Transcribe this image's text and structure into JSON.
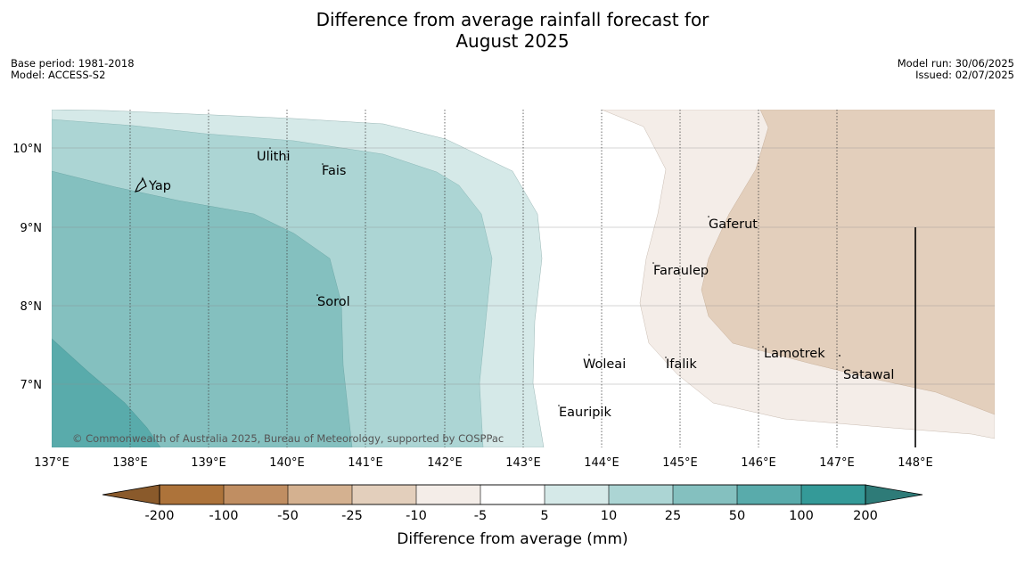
{
  "header": {
    "title_line1": "Difference from average rainfall forecast for",
    "title_line2": "August 2025",
    "base_period": "Base period: 1981-2018",
    "model": "Model: ACCESS-S2",
    "model_run": "Model run: 30/06/2025",
    "issued": "Issued: 02/07/2025"
  },
  "map": {
    "lon_labels": [
      "137°E",
      "138°E",
      "139°E",
      "140°E",
      "141°E",
      "142°E",
      "143°E",
      "144°E",
      "145°E",
      "146°E",
      "147°E",
      "148°E"
    ],
    "lat_labels": [
      "10°N",
      "9°N",
      "8°N",
      "7°N"
    ],
    "places": [
      "Ulithi",
      "Fais",
      "Yap",
      "Gaferut",
      "Faraulep",
      "Sorol",
      "Lamotrek",
      "Woleai",
      "Ifalik",
      "Satawal",
      "Eauripik"
    ],
    "copyright": "© Commonwealth of Australia 2025, Bureau of Meteorology, supported by COSPPac"
  },
  "colorbar": {
    "ticks": [
      "-200",
      "-100",
      "-50",
      "-25",
      "-10",
      "-5",
      "5",
      "10",
      "25",
      "50",
      "100",
      "200"
    ],
    "label": "Difference from average (mm)",
    "colors": [
      "#ad733a",
      "#c08e62",
      "#d4b190",
      "#e3cfbc",
      "#f4ede8",
      "#ffffff",
      "#d5e9e8",
      "#acd5d4",
      "#84c0bf",
      "#59abab",
      "#349a98"
    ],
    "low_arrow": "#8a5a2b",
    "high_arrow": "#2e7b78"
  }
}
